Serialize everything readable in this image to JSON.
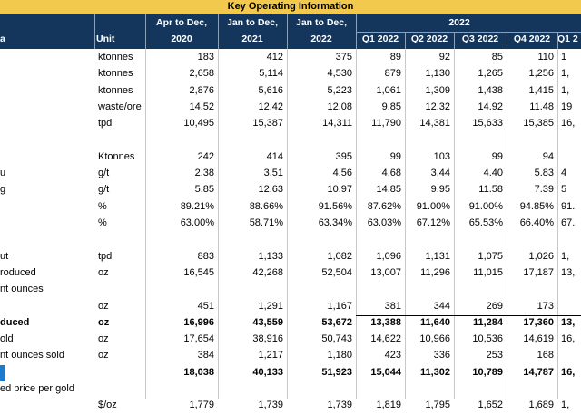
{
  "title": "Key Operating Information",
  "header": {
    "col0_label": "a",
    "unit_label": "Unit",
    "period1_line1": "Apr to Dec,",
    "period1_line2": "2020",
    "period2_line1": "Jan to Dec,",
    "period2_line2": "2021",
    "period3_line1": "Jan to Dec,",
    "period3_line2": "2022",
    "group_2022": "2022",
    "q1": "Q1 2022",
    "q2": "Q2 2022",
    "q3": "Q3 2022",
    "q4": "Q4 2022",
    "q1_next": "Q1 2"
  },
  "rows": [
    {
      "label": "",
      "unit": "ktonnes",
      "v": [
        "183",
        "412",
        "375",
        "89",
        "92",
        "85",
        "110",
        "1"
      ],
      "bold": false,
      "blue": false
    },
    {
      "label": "",
      "unit": "ktonnes",
      "v": [
        "2,658",
        "5,114",
        "4,530",
        "879",
        "1,130",
        "1,265",
        "1,256",
        "1,"
      ],
      "bold": false,
      "blue": false
    },
    {
      "label": "",
      "unit": "ktonnes",
      "v": [
        "2,876",
        "5,616",
        "5,223",
        "1,061",
        "1,309",
        "1,438",
        "1,415",
        "1,"
      ],
      "bold": false,
      "blue": false
    },
    {
      "label": "",
      "unit": "waste/ore",
      "v": [
        "14.52",
        "12.42",
        "12.08",
        "9.85",
        "12.32",
        "14.92",
        "11.48",
        "19"
      ],
      "bold": false,
      "blue": false
    },
    {
      "label": "",
      "unit": "tpd",
      "v": [
        "10,495",
        "15,387",
        "14,311",
        "11,790",
        "14,381",
        "15,633",
        "15,385",
        "16,"
      ],
      "bold": false,
      "blue": false
    },
    {
      "label": "",
      "unit": "",
      "v": [
        "",
        "",
        "",
        "",
        "",
        "",
        "",
        ""
      ],
      "bold": false,
      "blue": false
    },
    {
      "label": "",
      "unit": "Ktonnes",
      "v": [
        "242",
        "414",
        "395",
        "99",
        "103",
        "99",
        "94",
        ""
      ],
      "bold": false,
      "blue": false
    },
    {
      "label": "u",
      "unit": "g/t",
      "v": [
        "2.38",
        "3.51",
        "4.56",
        "4.68",
        "3.44",
        "4.40",
        "5.83",
        "4"
      ],
      "bold": false,
      "blue": false
    },
    {
      "label": "g",
      "unit": "g/t",
      "v": [
        "5.85",
        "12.63",
        "10.97",
        "14.85",
        "9.95",
        "11.58",
        "7.39",
        "5"
      ],
      "bold": false,
      "blue": false
    },
    {
      "label": "",
      "unit": "%",
      "v": [
        "89.21%",
        "88.66%",
        "91.56%",
        "87.62%",
        "91.00%",
        "91.00%",
        "94.85%",
        "91."
      ],
      "bold": false,
      "blue": false
    },
    {
      "label": "",
      "unit": "%",
      "v": [
        "63.00%",
        "58.71%",
        "63.34%",
        "63.03%",
        "67.12%",
        "65.53%",
        "66.40%",
        "67."
      ],
      "bold": false,
      "blue": false
    },
    {
      "label": "",
      "unit": "",
      "v": [
        "",
        "",
        "",
        "",
        "",
        "",
        "",
        ""
      ],
      "bold": false,
      "blue": false
    },
    {
      "label": "ut",
      "unit": "tpd",
      "v": [
        "883",
        "1,133",
        "1,082",
        "1,096",
        "1,131",
        "1,075",
        "1,026",
        "1,"
      ],
      "bold": false,
      "blue": false
    },
    {
      "label": "roduced",
      "unit": "oz",
      "v": [
        "16,545",
        "42,268",
        "52,504",
        "13,007",
        "11,296",
        "11,015",
        "17,187",
        "13,"
      ],
      "bold": false,
      "blue": false
    },
    {
      "label": "nt ounces",
      "unit": "",
      "v": [
        "",
        "",
        "",
        "",
        "",
        "",
        "",
        ""
      ],
      "bold": false,
      "blue": false
    },
    {
      "label": "",
      "unit": "oz",
      "v": [
        "451",
        "1,291",
        "1,167",
        "381",
        "344",
        "269",
        "173",
        ""
      ],
      "bold": false,
      "blue": false
    },
    {
      "label": "duced",
      "unit": "oz",
      "v": [
        "16,996",
        "43,559",
        "53,672",
        "13,388",
        "11,640",
        "11,284",
        "17,360",
        "13,"
      ],
      "bold": true,
      "blue": false
    },
    {
      "label": "old",
      "unit": "oz",
      "v": [
        "17,654",
        "38,916",
        "50,743",
        "14,622",
        "10,966",
        "10,536",
        "14,619",
        "16,"
      ],
      "bold": false,
      "blue": false
    },
    {
      "label": "nt ounces sold",
      "unit": "oz",
      "v": [
        "384",
        "1,217",
        "1,180",
        "423",
        "336",
        "253",
        "168",
        ""
      ],
      "bold": false,
      "blue": false
    },
    {
      "label": "",
      "unit": "",
      "v": [
        "18,038",
        "40,133",
        "51,923",
        "15,044",
        "11,302",
        "10,789",
        "14,787",
        "16,"
      ],
      "bold": true,
      "blue": true
    },
    {
      "label": "ed price per gold",
      "unit": "",
      "v": [
        "",
        "",
        "",
        "",
        "",
        "",
        "",
        ""
      ],
      "bold": false,
      "blue": false
    },
    {
      "label": "",
      "unit": "$/oz",
      "v": [
        "1,779",
        "1,739",
        "1,739",
        "1,819",
        "1,795",
        "1,652",
        "1,689",
        "1,"
      ],
      "bold": false,
      "blue": false
    }
  ]
}
